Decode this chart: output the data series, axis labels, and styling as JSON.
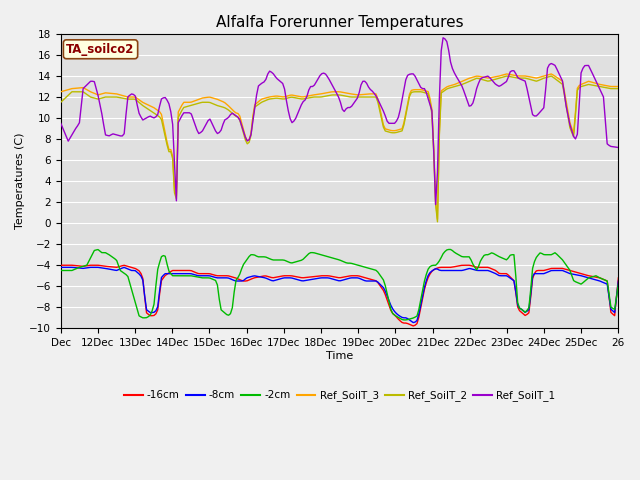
{
  "title": "Alfalfa Forerunner Temperatures",
  "xlabel": "Time",
  "ylabel": "Temperatures (C)",
  "annotation": "TA_soilco2",
  "ylim": [
    -10,
    18
  ],
  "yticks": [
    -10,
    -8,
    -6,
    -4,
    -2,
    0,
    2,
    4,
    6,
    8,
    10,
    12,
    14,
    16,
    18
  ],
  "x_labels": [
    "Dec",
    "12Dec",
    "13Dec",
    "14Dec",
    "15Dec",
    "16Dec",
    "17Dec",
    "18Dec",
    "19Dec",
    "20Dec",
    "21Dec",
    "22Dec",
    "23Dec",
    "24Dec",
    "25Dec",
    "26"
  ],
  "x_positions": [
    0,
    1,
    2,
    3,
    4,
    5,
    6,
    7,
    8,
    9,
    10,
    11,
    12,
    13,
    14,
    15
  ],
  "colors": {
    "neg16cm": "#FF0000",
    "neg8cm": "#0000FF",
    "neg2cm": "#00BB00",
    "ref3": "#FFA500",
    "ref2": "#BBBB00",
    "ref1": "#9900CC"
  },
  "legend_colors": [
    "#FF0000",
    "#0000FF",
    "#00BB00",
    "#FFA500",
    "#BBBB00",
    "#9900CC"
  ],
  "legend_labels": [
    "-16cm",
    "-8cm",
    "-2cm",
    "Ref_SoilT_3",
    "Ref_SoilT_2",
    "Ref_SoilT_1"
  ],
  "fig_bg": "#F0F0F0",
  "ax_bg": "#E0E0E0",
  "grid_color": "#FFFFFF",
  "title_fontsize": 11,
  "n_points": 300
}
